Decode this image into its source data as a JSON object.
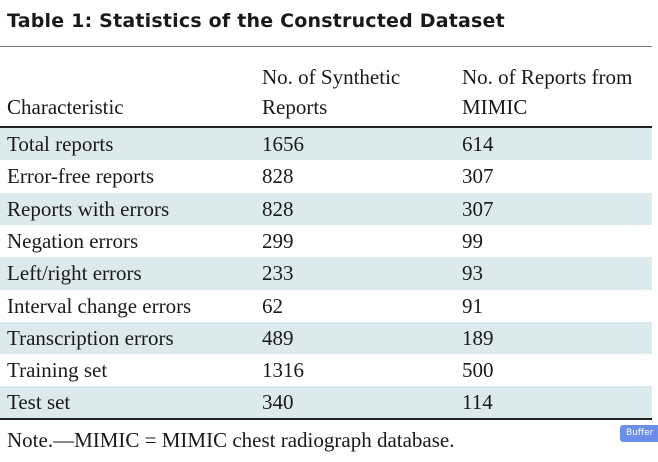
{
  "title": "Table 1: Statistics of the Constructed Dataset",
  "table": {
    "header": [
      "Characteristic",
      "No. of Synthetic Reports",
      "No. of Reports from MIMIC"
    ],
    "rows": [
      [
        "Total reports",
        "1656",
        "614"
      ],
      [
        "Error-free reports",
        "828",
        "307"
      ],
      [
        "Reports with errors",
        "828",
        "307"
      ],
      [
        "Negation errors",
        "299",
        "99"
      ],
      [
        "Left/right errors",
        "233",
        "93"
      ],
      [
        "Interval change errors",
        "62",
        "91"
      ],
      [
        "Transcription errors",
        "489",
        "189"
      ],
      [
        "Training set",
        "1316",
        "500"
      ],
      [
        "Test set",
        "340",
        "114"
      ]
    ]
  },
  "note": "Note.—MIMIC = MIMIC chest radiograph database.",
  "badge": "Buffer"
}
